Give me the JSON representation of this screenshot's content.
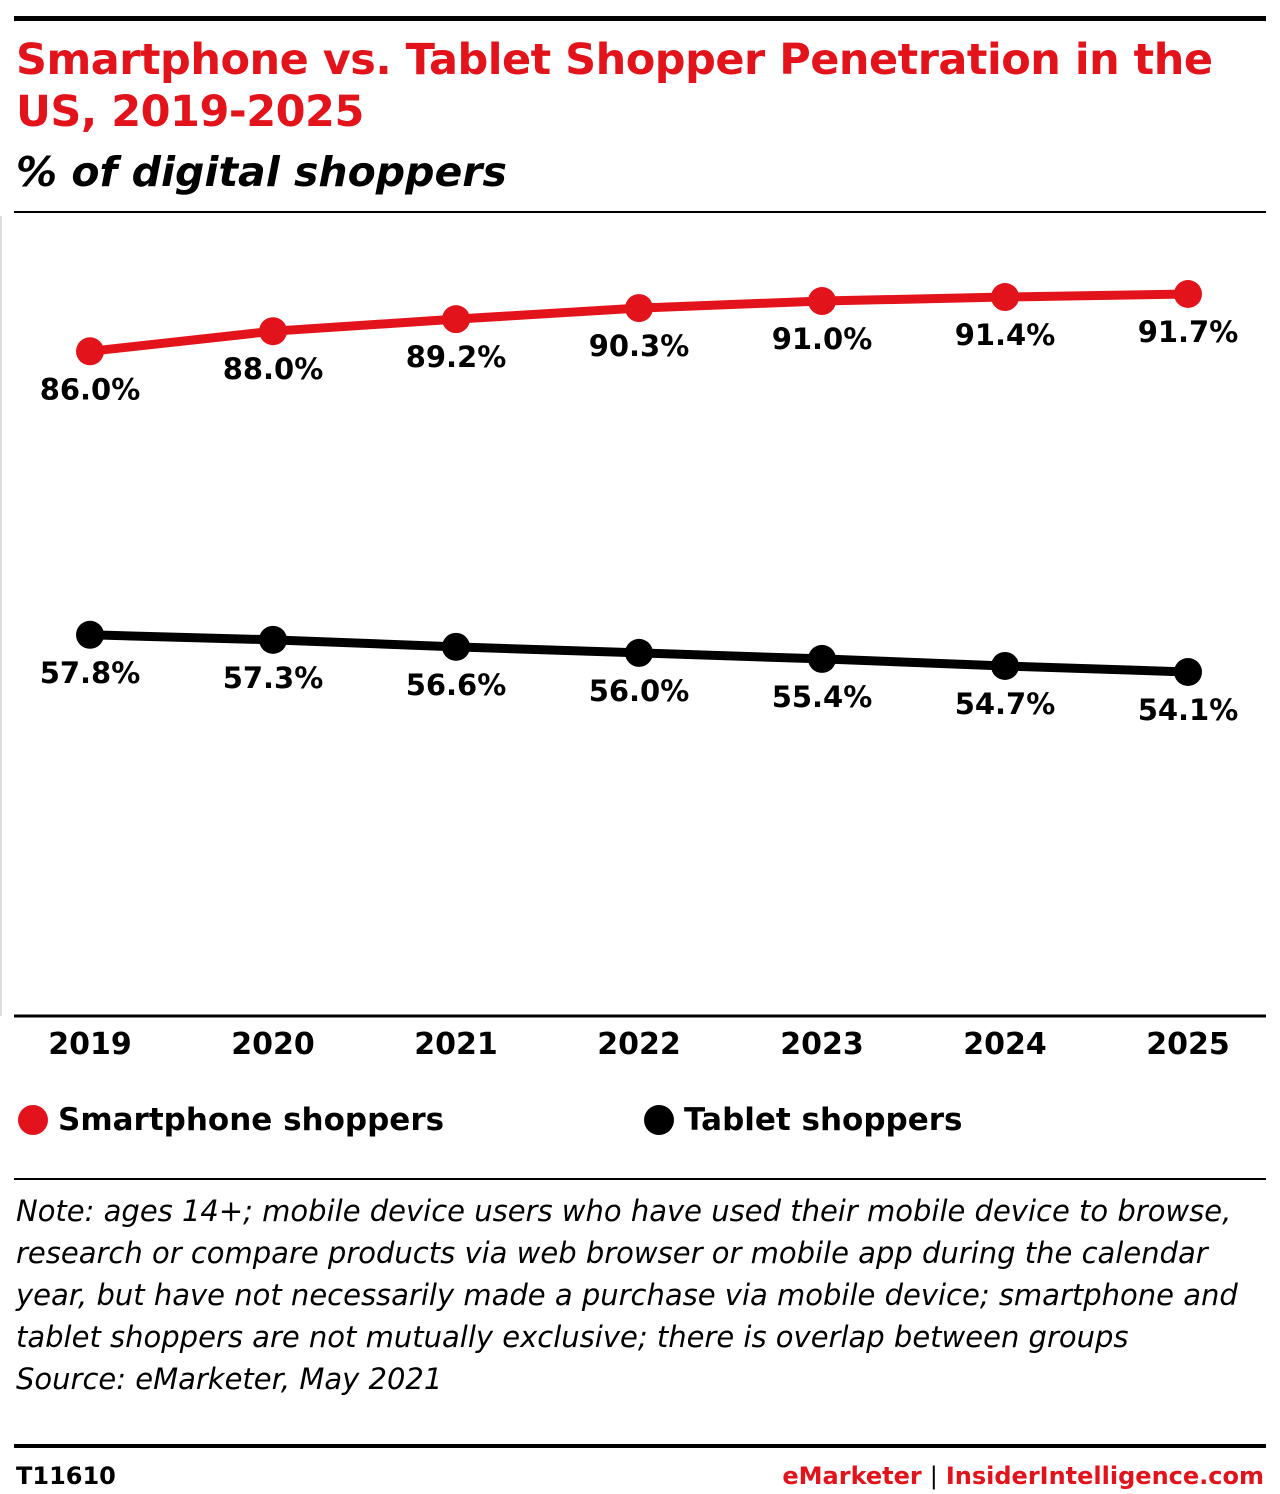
{
  "header": {
    "title": "Smartphone vs. Tablet Shopper Penetration in the US, 2019-2025",
    "subtitle": "% of digital shoppers"
  },
  "colors": {
    "accent": "#e3131b",
    "tablet": "#000000"
  },
  "chart_data": {
    "type": "line",
    "title": "Smartphone vs. Tablet Shopper Penetration in the US, 2019-2025",
    "subtitle": "% of digital shoppers",
    "xlabel": "",
    "ylabel": "",
    "categories": [
      "2019",
      "2020",
      "2021",
      "2022",
      "2023",
      "2024",
      "2025"
    ],
    "ylim": [
      45,
      95
    ],
    "grid": false,
    "legend": "bottom",
    "series": [
      {
        "name": "Smartphone shoppers",
        "color": "#e3131b",
        "values": [
          86.0,
          88.0,
          89.2,
          90.3,
          91.0,
          91.4,
          91.7
        ],
        "labels": [
          "86.0%",
          "88.0%",
          "89.2%",
          "90.3%",
          "91.0%",
          "91.4%",
          "91.7%"
        ]
      },
      {
        "name": "Tablet shoppers",
        "color": "#000000",
        "values": [
          57.8,
          57.3,
          56.6,
          56.0,
          55.4,
          54.7,
          54.1
        ],
        "labels": [
          "57.8%",
          "57.3%",
          "56.6%",
          "56.0%",
          "55.4%",
          "54.7%",
          "54.1%"
        ]
      }
    ]
  },
  "footer": {
    "note": "Note: ages 14+; mobile device users who have used their mobile device to browse, research or compare products via web browser or mobile app during the calendar year, but have not necessarily made a purchase via mobile device; smartphone and tablet shoppers are not mutually exclusive; there is overlap between groups",
    "source": "Source: eMarketer, May 2021",
    "code": "T11610",
    "brand_left": "eMarketer",
    "brand_sep": "|",
    "brand_right": "InsiderIntelligence.com"
  }
}
